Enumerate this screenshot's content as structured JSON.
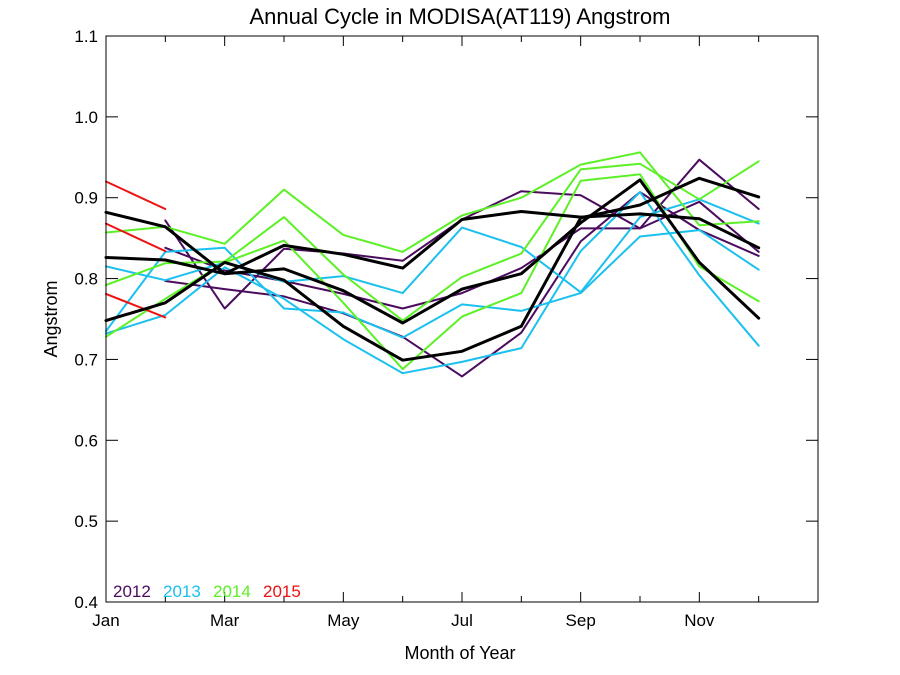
{
  "chart_data": {
    "type": "line",
    "title": "Annual Cycle in MODISA(AT119) Angstrom",
    "xlabel": "Month of Year",
    "ylabel": "Angstrom",
    "xlim": [
      1,
      13
    ],
    "ylim": [
      0.4,
      1.1
    ],
    "x_ticks": [
      1,
      3,
      5,
      7,
      9,
      11
    ],
    "x_tick_labels": [
      "Jan",
      "Mar",
      "May",
      "Jul",
      "Sep",
      "Nov"
    ],
    "x_minor_ticks": [
      2,
      4,
      6,
      8,
      10,
      12
    ],
    "y_ticks": [
      0.4,
      0.5,
      0.6,
      0.7,
      0.8,
      0.9,
      1.0,
      1.1
    ],
    "y_tick_labels": [
      "0.4",
      "0.5",
      "0.6",
      "0.7",
      "0.8",
      "0.9",
      "1.0",
      "1.1"
    ],
    "legend_placement": "bottom-left",
    "legend": [
      {
        "label": "2012",
        "color": "#4b0b5e"
      },
      {
        "label": "2013",
        "color": "#1cc0ee"
      },
      {
        "label": "2014",
        "color": "#5cf026"
      },
      {
        "label": "2015",
        "color": "#ee1111"
      }
    ],
    "series": [
      {
        "color": "#4b0b5e",
        "width": 2,
        "x": [
          2,
          3,
          4,
          5,
          6,
          7,
          8,
          9,
          10,
          11,
          12
        ],
        "y": [
          0.872,
          0.763,
          0.837,
          0.831,
          0.822,
          0.873,
          0.908,
          0.903,
          0.862,
          0.947,
          0.886
        ]
      },
      {
        "color": "#4b0b5e",
        "width": 2,
        "x": [
          2,
          3,
          4,
          5,
          6,
          7,
          8,
          9,
          10,
          11,
          12
        ],
        "y": [
          0.838,
          0.81,
          0.797,
          0.781,
          0.763,
          0.782,
          0.813,
          0.862,
          0.862,
          0.895,
          0.833
        ]
      },
      {
        "color": "#4b0b5e",
        "width": 2,
        "x": [
          2,
          3,
          4,
          5,
          6,
          7,
          8,
          9,
          10,
          11,
          12
        ],
        "y": [
          0.797,
          0.787,
          0.778,
          0.757,
          0.728,
          0.679,
          0.733,
          0.846,
          0.907,
          0.86,
          0.828
        ]
      },
      {
        "color": "#1cc0ee",
        "width": 2,
        "x": [
          1,
          2,
          3,
          4,
          5,
          6,
          7,
          8,
          9,
          10,
          11,
          12
        ],
        "y": [
          0.815,
          0.798,
          0.82,
          0.796,
          0.803,
          0.782,
          0.863,
          0.839,
          0.783,
          0.876,
          0.898,
          0.868
        ]
      },
      {
        "color": "#1cc0ee",
        "width": 2,
        "x": [
          1,
          2,
          3,
          4,
          5,
          6,
          7,
          8,
          9,
          10,
          11,
          12
        ],
        "y": [
          0.735,
          0.833,
          0.838,
          0.763,
          0.758,
          0.727,
          0.768,
          0.76,
          0.782,
          0.852,
          0.86,
          0.811
        ]
      },
      {
        "color": "#1cc0ee",
        "width": 2,
        "x": [
          1,
          2,
          3,
          4,
          5,
          6,
          7,
          8,
          9,
          10,
          11,
          12
        ],
        "y": [
          0.732,
          0.755,
          0.814,
          0.775,
          0.725,
          0.683,
          0.697,
          0.714,
          0.834,
          0.907,
          0.804,
          0.717
        ]
      },
      {
        "color": "#5cf026",
        "width": 2,
        "x": [
          1,
          2,
          3,
          4,
          5,
          6,
          7,
          8,
          9,
          10,
          11,
          12
        ],
        "y": [
          0.857,
          0.864,
          0.843,
          0.91,
          0.854,
          0.833,
          0.878,
          0.9,
          0.941,
          0.956,
          0.866,
          0.871
        ]
      },
      {
        "color": "#5cf026",
        "width": 2,
        "x": [
          1,
          2,
          3,
          4,
          5,
          6,
          7,
          8,
          9,
          10,
          11,
          12
        ],
        "y": [
          0.792,
          0.819,
          0.821,
          0.876,
          0.805,
          0.748,
          0.802,
          0.831,
          0.935,
          0.942,
          0.898,
          0.945
        ]
      },
      {
        "color": "#5cf026",
        "width": 2,
        "x": [
          1,
          2,
          3,
          4,
          5,
          6,
          7,
          8,
          9,
          10,
          11,
          12
        ],
        "y": [
          0.728,
          0.775,
          0.82,
          0.847,
          0.77,
          0.688,
          0.753,
          0.782,
          0.921,
          0.929,
          0.815,
          0.772
        ]
      },
      {
        "color": "#ee1111",
        "width": 2,
        "x": [
          1,
          2
        ],
        "y": [
          0.92,
          0.886
        ]
      },
      {
        "color": "#ee1111",
        "width": 2,
        "x": [
          1,
          2
        ],
        "y": [
          0.868,
          0.834
        ]
      },
      {
        "color": "#ee1111",
        "width": 2,
        "x": [
          1,
          2
        ],
        "y": [
          0.781,
          0.752
        ]
      },
      {
        "color": "#000000",
        "width": 3,
        "x": [
          1,
          2,
          3,
          4,
          5,
          6,
          7,
          8,
          9,
          10,
          11,
          12
        ],
        "y": [
          0.882,
          0.864,
          0.806,
          0.812,
          0.785,
          0.745,
          0.787,
          0.806,
          0.869,
          0.922,
          0.82,
          0.751
        ]
      },
      {
        "color": "#000000",
        "width": 3,
        "x": [
          1,
          2,
          3,
          4,
          5,
          6,
          7,
          8,
          9,
          10,
          11,
          12
        ],
        "y": [
          0.826,
          0.823,
          0.806,
          0.841,
          0.83,
          0.813,
          0.873,
          0.883,
          0.876,
          0.88,
          0.874,
          0.838
        ]
      },
      {
        "color": "#000000",
        "width": 3,
        "x": [
          1,
          2,
          3,
          4,
          5,
          6,
          7,
          8,
          9,
          10,
          11,
          12
        ],
        "y": [
          0.748,
          0.77,
          0.82,
          0.798,
          0.741,
          0.699,
          0.71,
          0.741,
          0.875,
          0.891,
          0.924,
          0.901
        ]
      }
    ]
  }
}
